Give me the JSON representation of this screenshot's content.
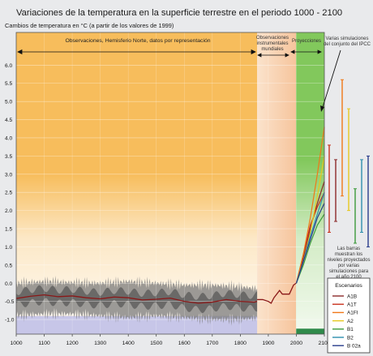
{
  "chart_data": {
    "type": "line",
    "title": "Variaciones de la temperatura en la superficie terrestre en el periodo 1000 - 2100",
    "ylabel": "Cambios de temperatura en °C (a partir de los valores de 1999)",
    "xlabel": "",
    "xlim": [
      1000,
      2100
    ],
    "ylim": [
      -1.4,
      6.9
    ],
    "x_ticks": [
      1000,
      1100,
      1200,
      1300,
      1400,
      1500,
      1600,
      1700,
      1800,
      1900,
      2000,
      2100
    ],
    "y_ticks": [
      "-1.0",
      "-0.5",
      "0.0",
      "0.5",
      "1.0",
      "1.5",
      "2.0",
      "2.5",
      "3.0",
      "3.5",
      "4.0",
      "4.5",
      "5.0",
      "5.5",
      "6.0"
    ],
    "grid": true,
    "periods": [
      {
        "label": "Observaciones, Hemisferio Norte, datos por representación",
        "start": 1000,
        "end": 1860,
        "color": "#f7bd5c"
      },
      {
        "label": "Observaciones instrumentales mundiales",
        "start": 1860,
        "end": 1999,
        "color": "#f8d3b2"
      },
      {
        "label": "Proyecciones",
        "start": 1999,
        "end": 2100,
        "color": "#82c85c"
      }
    ],
    "reconstruction": {
      "color": "#8a1818",
      "x": [
        1000,
        1050,
        1100,
        1150,
        1200,
        1250,
        1300,
        1350,
        1400,
        1450,
        1500,
        1550,
        1600,
        1650,
        1700,
        1750,
        1800,
        1850,
        1860
      ],
      "y": [
        -0.42,
        -0.36,
        -0.32,
        -0.37,
        -0.35,
        -0.4,
        -0.43,
        -0.38,
        -0.4,
        -0.46,
        -0.44,
        -0.41,
        -0.5,
        -0.55,
        -0.52,
        -0.45,
        -0.5,
        -0.52,
        -0.5
      ]
    },
    "uncertainty_band": {
      "x": [
        1000,
        1100,
        1200,
        1300,
        1400,
        1500,
        1600,
        1700,
        1800,
        1860
      ],
      "upper": [
        0.0,
        0.05,
        0.02,
        0.0,
        0.05,
        0.0,
        -0.05,
        -0.05,
        -0.1,
        -0.15
      ],
      "lower": [
        -0.9,
        -0.85,
        -0.85,
        -0.9,
        -0.95,
        -0.9,
        -0.95,
        -1.0,
        -1.0,
        -0.95
      ]
    },
    "instrumental": {
      "color": "#8a1818",
      "x": [
        1860,
        1880,
        1900,
        1910,
        1920,
        1940,
        1950,
        1960,
        1975,
        1990,
        1999
      ],
      "y": [
        -0.45,
        -0.45,
        -0.5,
        -0.55,
        -0.4,
        -0.2,
        -0.3,
        -0.3,
        -0.3,
        -0.05,
        0.0
      ]
    },
    "series": [
      {
        "name": "A1B",
        "color": "#8c2a2a",
        "x": [
          2000,
          2025,
          2050,
          2075,
          2100
        ],
        "y": [
          0.0,
          0.7,
          1.5,
          2.2,
          2.8
        ]
      },
      {
        "name": "A1T",
        "color": "#c8321e",
        "x": [
          2000,
          2025,
          2050,
          2075,
          2100
        ],
        "y": [
          0.0,
          0.8,
          1.6,
          2.1,
          2.5
        ]
      },
      {
        "name": "A1FI",
        "color": "#f07818",
        "x": [
          2000,
          2025,
          2050,
          2075,
          2100
        ],
        "y": [
          0.0,
          0.8,
          1.8,
          3.0,
          4.3
        ]
      },
      {
        "name": "A2",
        "color": "#e6c81e",
        "x": [
          2000,
          2025,
          2050,
          2075,
          2100
        ],
        "y": [
          0.0,
          0.6,
          1.4,
          2.4,
          3.5
        ]
      },
      {
        "name": "B1",
        "color": "#3c9a3c",
        "x": [
          2000,
          2025,
          2050,
          2075,
          2100
        ],
        "y": [
          0.0,
          0.5,
          1.1,
          1.6,
          1.9
        ]
      },
      {
        "name": "B2",
        "color": "#2e8fae",
        "x": [
          2000,
          2025,
          2050,
          2075,
          2100
        ],
        "y": [
          0.0,
          0.6,
          1.3,
          1.9,
          2.5
        ]
      },
      {
        "name": "B 02a",
        "color": "#2a3c8c",
        "x": [
          2000,
          2025,
          2050,
          2075,
          2100
        ],
        "y": [
          0.0,
          0.6,
          1.2,
          1.8,
          2.2
        ]
      }
    ],
    "range_bars": [
      {
        "color": "#c8321e",
        "low": 1.4,
        "high": 3.8
      },
      {
        "color": "#8c2a2a",
        "low": 1.7,
        "high": 3.4
      },
      {
        "color": "#f07818",
        "low": 2.4,
        "high": 5.6
      },
      {
        "color": "#e6c81e",
        "low": 2.0,
        "high": 4.8
      },
      {
        "color": "#3c9a3c",
        "low": 1.1,
        "high": 2.6
      },
      {
        "color": "#2e8fae",
        "low": 1.4,
        "high": 3.4
      },
      {
        "color": "#2a3c8c",
        "low": 1.0,
        "high": 3.5
      }
    ],
    "annotations": {
      "simulations": "Varias simulaciones del conjunto del IPCC",
      "bars_note": "Las barras muestran los niveles proyectados por varias simulaciones para el año 2100"
    },
    "legend_title": "Escenarios",
    "legend_placement": "bottom-right"
  }
}
